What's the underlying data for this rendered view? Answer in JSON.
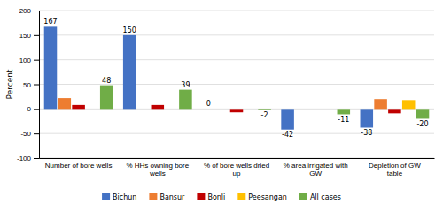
{
  "chart_data": {
    "type": "bar",
    "categories": [
      "Number of bore wells",
      "% HHs owning bore\nwells",
      "% of bore wells dried\nup",
      "% area irrigated with\nGW",
      "Depletion of GW\ntable"
    ],
    "series": [
      {
        "name": "Bichun",
        "color": "#4472C4",
        "values": [
          167,
          150,
          0,
          -42,
          -38
        ],
        "data_labels": true
      },
      {
        "name": "Bansur",
        "color": "#ED7D31",
        "values": [
          22,
          0,
          0,
          0,
          20
        ]
      },
      {
        "name": "Bonli",
        "color": "#C00000",
        "values": [
          8,
          8,
          -7,
          0,
          -9
        ]
      },
      {
        "name": "Peesangan",
        "color": "#FFC000",
        "values": [
          0,
          0,
          0,
          0,
          18
        ]
      },
      {
        "name": "All cases",
        "color": "#70AD47",
        "values": [
          48,
          39,
          -2,
          -11,
          -20
        ],
        "data_labels": true
      }
    ],
    "ylabel": "Percent",
    "ylim": [
      -100,
      200
    ],
    "yticks": [
      -100,
      -50,
      0,
      50,
      100,
      150,
      200
    ],
    "grid": true,
    "legend": "bottom"
  }
}
